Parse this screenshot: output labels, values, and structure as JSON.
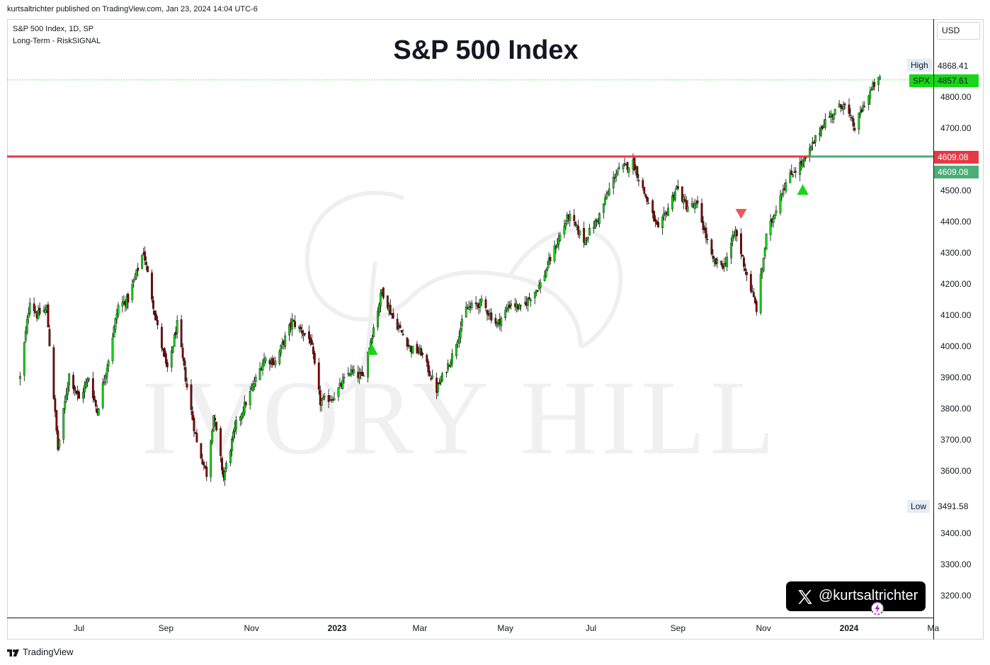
{
  "publisher": "kurtsaltrichter published on TradingView.com, Jan 23, 2024 14:04 UTC-6",
  "legend": {
    "symbol_line": "S&P 500 Index, 1D, SP",
    "indicator_line": "Long-Term - RiskSIGNAL"
  },
  "currency_button": "USD",
  "price_axis_ticks": [
    "4800.00",
    "4700.00",
    "4500.00",
    "4400.00",
    "4300.00",
    "4200.00",
    "4100.00",
    "4000.00",
    "3900.00",
    "3800.00",
    "3700.00",
    "3600.00",
    "3400.00",
    "3300.00",
    "3200.00"
  ],
  "time_axis_ticks": [
    "Jul",
    "Sep",
    "Nov",
    "2023",
    "Mar",
    "May",
    "Jul",
    "Sep",
    "Nov",
    "2024",
    "Ma"
  ],
  "markers": {
    "high_label": "High",
    "high_value": "4868.41",
    "symbol_label": "SPX",
    "last_value": "4857.61",
    "resistance_value": "4609.08",
    "support_value": "4609.08",
    "low_label": "Low",
    "low_value": "3491.58"
  },
  "social": {
    "handle": "@kurtsaltrichter",
    "icon": "x-logo-icon"
  },
  "branding": {
    "tradingview": "TradingView",
    "watermark_icon": "elephant-watermark-icon",
    "watermark_text": "IVORY HILL"
  },
  "colors": {
    "up_candle": "#18d618",
    "down_candle": "#8b0000",
    "resistance_line": "#e63946",
    "support_line": "#4cad76",
    "buy_signal": "#18d618",
    "sell_signal": "#f05656",
    "high_dotted": "#18d618"
  },
  "chart_data": {
    "type": "candlestick",
    "title": "S&P 500 Index",
    "interval": "1D",
    "ylim": [
      3130,
      5060
    ],
    "xlim": [
      "2022-05-20",
      "2024-03-05"
    ],
    "grid": false,
    "series": [
      {
        "name": "S&P 500 Index",
        "close_path": [
          [
            "2022-05-20",
            3900
          ],
          [
            "2022-05-27",
            4150
          ],
          [
            "2022-06-01",
            4100
          ],
          [
            "2022-06-08",
            4120
          ],
          [
            "2022-06-16",
            3670
          ],
          [
            "2022-06-24",
            3910
          ],
          [
            "2022-07-01",
            3830
          ],
          [
            "2022-07-08",
            3900
          ],
          [
            "2022-07-14",
            3790
          ],
          [
            "2022-07-22",
            3960
          ],
          [
            "2022-07-29",
            4130
          ],
          [
            "2022-08-05",
            4150
          ],
          [
            "2022-08-16",
            4305
          ],
          [
            "2022-08-26",
            4060
          ],
          [
            "2022-09-02",
            3920
          ],
          [
            "2022-09-09",
            4070
          ],
          [
            "2022-09-16",
            3870
          ],
          [
            "2022-09-23",
            3690
          ],
          [
            "2022-09-30",
            3590
          ],
          [
            "2022-10-05",
            3780
          ],
          [
            "2022-10-12",
            3580
          ],
          [
            "2022-10-21",
            3750
          ],
          [
            "2022-11-01",
            3860
          ],
          [
            "2022-11-10",
            3960
          ],
          [
            "2022-11-18",
            3950
          ],
          [
            "2022-11-30",
            4080
          ],
          [
            "2022-12-13",
            4020
          ],
          [
            "2022-12-20",
            3820
          ],
          [
            "2022-12-30",
            3840
          ],
          [
            "2023-01-10",
            3920
          ],
          [
            "2023-01-19",
            3900
          ],
          [
            "2023-02-02",
            4180
          ],
          [
            "2023-02-10",
            4090
          ],
          [
            "2023-02-23",
            3990
          ],
          [
            "2023-03-02",
            3980
          ],
          [
            "2023-03-13",
            3860
          ],
          [
            "2023-03-24",
            3970
          ],
          [
            "2023-04-03",
            4120
          ],
          [
            "2023-04-14",
            4140
          ],
          [
            "2023-04-25",
            4070
          ],
          [
            "2023-05-05",
            4140
          ],
          [
            "2023-05-12",
            4120
          ],
          [
            "2023-05-26",
            4200
          ],
          [
            "2023-06-02",
            4280
          ],
          [
            "2023-06-15",
            4420
          ],
          [
            "2023-06-26",
            4340
          ],
          [
            "2023-07-06",
            4410
          ],
          [
            "2023-07-19",
            4560
          ],
          [
            "2023-07-31",
            4590
          ],
          [
            "2023-08-09",
            4480
          ],
          [
            "2023-08-18",
            4370
          ],
          [
            "2023-08-31",
            4510
          ],
          [
            "2023-09-07",
            4450
          ],
          [
            "2023-09-15",
            4450
          ],
          [
            "2023-09-26",
            4270
          ],
          [
            "2023-10-04",
            4260
          ],
          [
            "2023-10-12",
            4370
          ],
          [
            "2023-10-20",
            4230
          ],
          [
            "2023-10-27",
            4120
          ],
          [
            "2023-11-03",
            4350
          ],
          [
            "2023-11-14",
            4500
          ],
          [
            "2023-11-22",
            4560
          ],
          [
            "2023-12-01",
            4600
          ],
          [
            "2023-12-14",
            4720
          ],
          [
            "2023-12-21",
            4750
          ],
          [
            "2023-12-28",
            4780
          ],
          [
            "2024-01-05",
            4700
          ],
          [
            "2024-01-12",
            4780
          ],
          [
            "2024-01-19",
            4840
          ],
          [
            "2024-01-23",
            4857.61
          ]
        ]
      }
    ],
    "overall_high": 4868.41,
    "overall_low": 3491.58,
    "last_close": 4857.61,
    "resistance_level": 4609.08,
    "support_level": 4609.08,
    "signals": [
      {
        "date": "2023-01-26",
        "type": "buy"
      },
      {
        "date": "2023-10-16",
        "type": "sell"
      },
      {
        "date": "2023-11-29",
        "type": "buy"
      }
    ]
  }
}
